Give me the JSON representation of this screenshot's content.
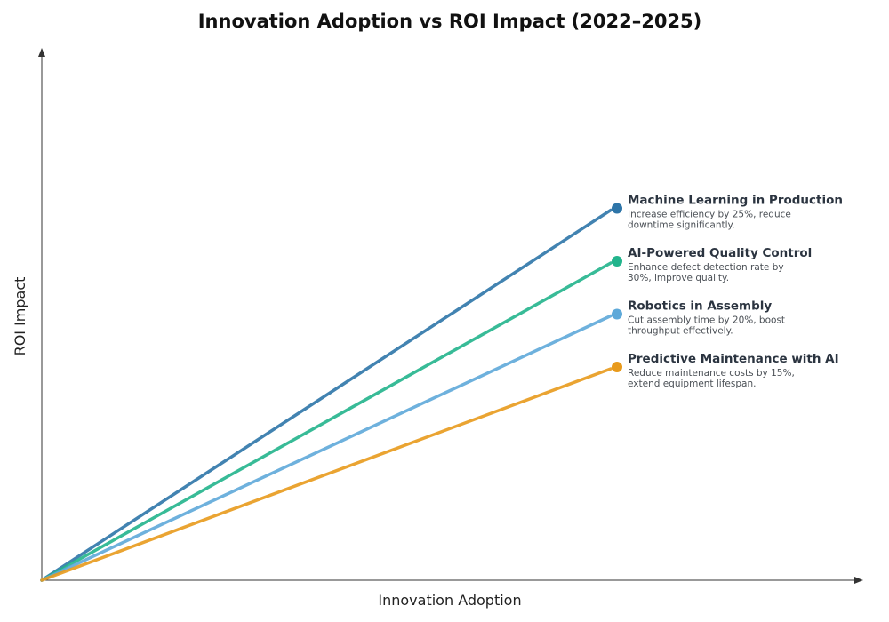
{
  "chart_data": {
    "type": "line",
    "title": "Innovation Adoption vs ROI Impact (2022–2025)",
    "xlabel": "Innovation Adoption",
    "ylabel": "ROI Impact",
    "grid": false,
    "legend": "inline-right",
    "xlim": [
      0,
      1.45
    ],
    "ylim": [
      0,
      1.0
    ],
    "series": [
      {
        "name": "Machine Learning in Production",
        "description_lines": [
          "Increase efficiency by 25%, reduce",
          "downtime significantly."
        ],
        "color": "#2e75a8",
        "points": [
          [
            0,
            0
          ],
          [
            1,
            0.7
          ]
        ]
      },
      {
        "name": "AI-Powered Quality Control",
        "description_lines": [
          "Enhance defect detection rate by",
          "30%, improve quality."
        ],
        "color": "#22b48c",
        "points": [
          [
            0,
            0
          ],
          [
            1,
            0.6
          ]
        ]
      },
      {
        "name": "Robotics in Assembly",
        "description_lines": [
          "Cut assembly time by 20%, boost",
          "throughput effectively."
        ],
        "color": "#5ea9d9",
        "points": [
          [
            0,
            0
          ],
          [
            1,
            0.5
          ]
        ]
      },
      {
        "name": "Predictive Maintenance with AI",
        "description_lines": [
          "Reduce maintenance costs by 15%,",
          "extend equipment lifespan."
        ],
        "color": "#e89a1c",
        "points": [
          [
            0,
            0
          ],
          [
            1,
            0.4
          ]
        ]
      }
    ]
  }
}
